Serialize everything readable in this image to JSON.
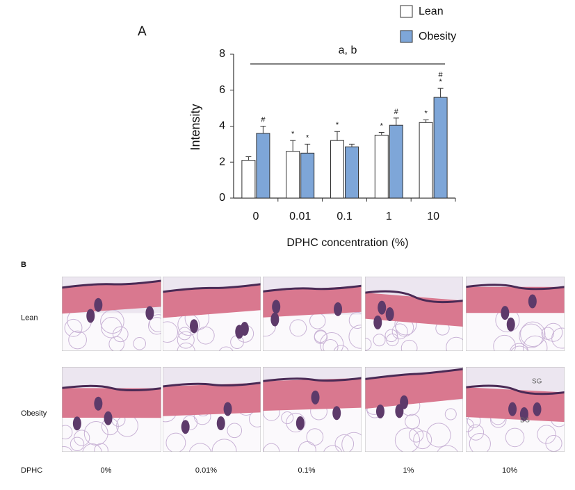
{
  "chart_data": {
    "type": "bar",
    "panel_label": "A",
    "ylabel": "Intensity",
    "xlabel": "DPHC concentration (%)",
    "categories": [
      "0",
      "0.01",
      "0.1",
      "1",
      "10"
    ],
    "series": [
      {
        "name": "Lean",
        "color": "#ffffff",
        "values": [
          2.1,
          2.6,
          3.2,
          3.5,
          4.2
        ],
        "errors": [
          0.2,
          0.6,
          0.5,
          0.15,
          0.15
        ],
        "markers": [
          [],
          [
            "*"
          ],
          [
            "*"
          ],
          [
            "*"
          ],
          [
            "*"
          ]
        ]
      },
      {
        "name": "Obesity",
        "color": "#7ea6d8",
        "values": [
          3.6,
          2.5,
          2.85,
          4.05,
          5.6
        ],
        "errors": [
          0.4,
          0.5,
          0.15,
          0.4,
          0.5
        ],
        "markers": [
          [
            "#"
          ],
          [
            "*"
          ],
          [],
          [
            "#"
          ],
          [
            "*",
            "#"
          ]
        ]
      }
    ],
    "ylim": [
      0,
      8
    ],
    "yticks": [
      0,
      2,
      4,
      6,
      8
    ],
    "annotation": "a, b",
    "legend": "top-right"
  },
  "panel_b": {
    "label": "B",
    "row_labels": [
      "Lean",
      "Obesity"
    ],
    "column_header": "DPHC",
    "column_labels": [
      "0%",
      "0.01%",
      "0.1%",
      "1%",
      "10%"
    ],
    "image_labels": [
      "SG",
      "DS"
    ]
  }
}
